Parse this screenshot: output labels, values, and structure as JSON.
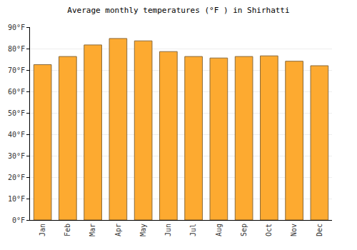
{
  "chart_data": {
    "type": "bar",
    "title": "Average monthly temperatures (°F ) in Shirhatti",
    "categories": [
      "Jan",
      "Feb",
      "Mar",
      "Apr",
      "May",
      "Jun",
      "Jul",
      "Aug",
      "Sep",
      "Oct",
      "Nov",
      "Dec"
    ],
    "values": [
      72.5,
      76.3,
      81.7,
      84.7,
      83.6,
      78.6,
      76.3,
      75.6,
      76.3,
      76.6,
      74.1,
      72.0
    ],
    "color": "#fdaa30",
    "ylim": [
      0,
      90
    ],
    "yticks": [
      {
        "value": 0,
        "label": "0°F"
      },
      {
        "value": 10,
        "label": "10°F"
      },
      {
        "value": 20,
        "label": "20°F"
      },
      {
        "value": 30,
        "label": "30°F"
      },
      {
        "value": 40,
        "label": "40°F"
      },
      {
        "value": 50,
        "label": "50°F"
      },
      {
        "value": 60,
        "label": "60°F"
      },
      {
        "value": 70,
        "label": "70°F"
      },
      {
        "value": 80,
        "label": "80°F"
      },
      {
        "value": 90,
        "label": "90°F"
      }
    ],
    "grid": true
  }
}
